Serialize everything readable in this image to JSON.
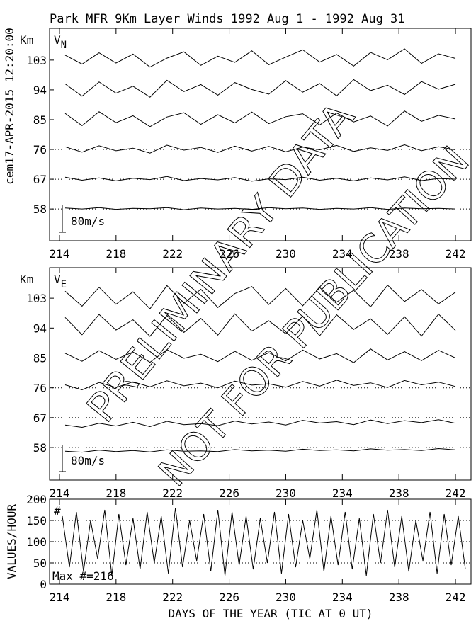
{
  "title": "Park MFR 9Km Layer Winds 1992 Aug  1 - 1992 Aug 31",
  "timestamp": "cem17-APR-2015 12:20:00",
  "xlabel": "DAYS OF THE YEAR (TIC AT 0 UT)",
  "watermark": [
    "PRELIMINARY DATA",
    "NOT FOR PUBLICATION"
  ],
  "chart_data": [
    {
      "type": "line",
      "ylabel": "Km",
      "label": "V",
      "label_sub": "N",
      "scale_label": "80m/s",
      "xlim": [
        213.3,
        243.1
      ],
      "xticks": [
        214,
        218,
        222,
        226,
        230,
        234,
        238,
        242
      ],
      "ylim": [
        48.4,
        112.6
      ],
      "yticks": [
        58,
        67,
        76,
        85,
        94,
        103
      ],
      "grid": true,
      "x": [
        214.4,
        215.6,
        216.8,
        218.0,
        219.2,
        220.4,
        221.6,
        222.8,
        224.0,
        225.2,
        226.4,
        227.6,
        228.8,
        230.0,
        231.2,
        232.4,
        233.6,
        234.8,
        236.0,
        237.2,
        238.4,
        239.6,
        240.8,
        242.0
      ],
      "series": [
        {
          "name": "103",
          "color": "#000000",
          "values": [
            104.5,
            101.8,
            105.2,
            102.1,
            104.8,
            100.9,
            103.6,
            105.5,
            101.4,
            104.2,
            102.3,
            105.8,
            101.6,
            103.9,
            106.1,
            102.4,
            104.7,
            101.2,
            105.3,
            103.1,
            106.4,
            102.0,
            104.9,
            103.5
          ]
        },
        {
          "name": "94",
          "color": "#000000",
          "values": [
            95.8,
            92.1,
            96.4,
            93.0,
            95.1,
            91.8,
            96.9,
            93.5,
            95.6,
            92.4,
            96.2,
            94.1,
            92.7,
            96.8,
            93.3,
            95.9,
            92.2,
            97.1,
            93.8,
            95.4,
            92.6,
            96.5,
            94.2,
            95.7
          ]
        },
        {
          "name": "85",
          "color": "#000000",
          "values": [
            86.9,
            83.2,
            87.4,
            84.1,
            86.2,
            82.9,
            85.8,
            87.1,
            83.6,
            86.5,
            84.0,
            87.3,
            83.8,
            85.9,
            86.8,
            83.4,
            87.0,
            84.3,
            86.1,
            83.1,
            87.6,
            84.5,
            86.3,
            85.2
          ]
        },
        {
          "name": "76",
          "color": "#000000",
          "values": [
            76.8,
            75.2,
            77.1,
            75.6,
            76.4,
            74.9,
            77.3,
            75.8,
            76.6,
            75.1,
            77.0,
            75.5,
            76.9,
            75.3,
            76.7,
            75.9,
            77.2,
            75.4,
            76.5,
            75.7,
            77.4,
            75.6,
            76.8,
            75.9
          ]
        },
        {
          "name": "67",
          "color": "#000000",
          "values": [
            67.6,
            66.7,
            67.4,
            66.5,
            67.3,
            66.9,
            67.8,
            66.6,
            67.2,
            66.8,
            67.5,
            66.4,
            67.1,
            66.9,
            67.6,
            66.7,
            67.3,
            66.5,
            67.4,
            66.8,
            67.7,
            66.6,
            67.2,
            67.0
          ]
        },
        {
          "name": "58",
          "color": "#000000",
          "values": [
            58.3,
            58.0,
            58.4,
            57.9,
            58.2,
            58.1,
            58.4,
            57.8,
            58.3,
            58.0,
            58.2,
            57.9,
            58.4,
            58.1,
            58.3,
            57.9,
            58.2,
            58.0,
            58.4,
            57.9,
            58.3,
            58.1,
            58.2,
            58.0
          ]
        }
      ]
    },
    {
      "type": "line",
      "ylabel": "Km",
      "label": "V",
      "label_sub": "E",
      "scale_label": "80m/s",
      "xlim": [
        213.3,
        243.1
      ],
      "xticks": [
        214,
        218,
        222,
        226,
        230,
        234,
        238,
        242
      ],
      "ylim": [
        48.2,
        112.2
      ],
      "yticks": [
        58,
        67,
        76,
        85,
        94,
        103
      ],
      "grid": true,
      "x": [
        214.4,
        215.6,
        216.8,
        218.0,
        219.2,
        220.4,
        221.6,
        222.8,
        224.0,
        225.2,
        226.4,
        227.6,
        228.8,
        230.0,
        231.2,
        232.4,
        233.6,
        234.8,
        236.0,
        237.2,
        238.4,
        239.6,
        240.8,
        242.0
      ],
      "series": [
        {
          "name": "103",
          "color": "#000000",
          "values": [
            105.1,
            100.6,
            106.3,
            101.2,
            104.9,
            99.8,
            106.8,
            101.5,
            105.7,
            100.2,
            104.4,
            106.5,
            101.1,
            105.9,
            100.7,
            106.2,
            101.8,
            105.4,
            100.4,
            106.9,
            102.0,
            105.6,
            101.3,
            104.8
          ]
        },
        {
          "name": "94",
          "color": "#000000",
          "values": [
            97.2,
            92.0,
            98.1,
            93.4,
            96.5,
            91.5,
            97.8,
            92.7,
            96.9,
            91.9,
            98.3,
            93.1,
            96.2,
            92.3,
            97.6,
            91.7,
            98.0,
            93.6,
            96.8,
            92.1,
            97.4,
            91.6,
            98.2,
            93.3
          ]
        },
        {
          "name": "85",
          "color": "#000000",
          "values": [
            86.4,
            84.0,
            87.2,
            84.6,
            86.8,
            83.7,
            87.5,
            84.9,
            86.1,
            83.9,
            87.0,
            84.3,
            86.6,
            84.1,
            87.4,
            84.7,
            86.3,
            83.6,
            87.7,
            84.4,
            86.9,
            84.2,
            87.3,
            85.0
          ]
        },
        {
          "name": "76",
          "color": "#000000",
          "values": [
            76.9,
            75.4,
            77.6,
            76.1,
            77.8,
            76.3,
            78.1,
            76.6,
            77.4,
            76.0,
            78.0,
            76.8,
            77.2,
            76.2,
            77.9,
            76.5,
            78.3,
            76.7,
            77.5,
            76.1,
            78.2,
            76.9,
            77.7,
            76.4
          ]
        },
        {
          "name": "67",
          "color": "#000000",
          "values": [
            64.8,
            64.1,
            65.3,
            64.5,
            65.6,
            64.3,
            65.9,
            64.9,
            65.2,
            64.6,
            66.0,
            65.1,
            65.7,
            64.8,
            66.2,
            65.4,
            65.8,
            64.9,
            66.3,
            65.2,
            66.1,
            65.5,
            66.4,
            65.3
          ]
        },
        {
          "name": "58",
          "color": "#000000",
          "values": [
            56.9,
            56.6,
            57.2,
            56.8,
            57.1,
            56.7,
            57.3,
            56.9,
            57.0,
            56.8,
            57.4,
            57.0,
            57.2,
            56.9,
            57.5,
            57.1,
            57.3,
            57.0,
            57.6,
            57.2,
            57.4,
            57.1,
            57.7,
            57.3
          ]
        }
      ]
    },
    {
      "type": "line",
      "ylabel": "VALUES/HOUR",
      "annotation": "#",
      "max_label": "Max #=216",
      "xlim": [
        213.3,
        243.1
      ],
      "xticks": [
        214,
        218,
        222,
        226,
        230,
        234,
        238,
        242
      ],
      "ylim": [
        0,
        200
      ],
      "yticks": [
        0,
        50,
        100,
        150,
        200
      ],
      "grid": true,
      "x": [
        214.2,
        214.7,
        215.2,
        215.7,
        216.2,
        216.7,
        217.2,
        217.7,
        218.2,
        218.7,
        219.2,
        219.7,
        220.2,
        220.7,
        221.2,
        221.7,
        222.2,
        222.7,
        223.2,
        223.7,
        224.2,
        224.7,
        225.2,
        225.7,
        226.2,
        226.7,
        227.2,
        227.7,
        228.2,
        228.7,
        229.2,
        229.7,
        230.2,
        230.7,
        231.2,
        231.7,
        232.2,
        232.7,
        233.2,
        233.7,
        234.2,
        234.7,
        235.2,
        235.7,
        236.2,
        236.7,
        237.2,
        237.7,
        238.2,
        238.7,
        239.2,
        239.7,
        240.2,
        240.7,
        241.2,
        241.7,
        242.2,
        242.7
      ],
      "series": [
        {
          "name": "#",
          "color": "#000000",
          "values": [
            160,
            40,
            170,
            30,
            150,
            60,
            175,
            20,
            165,
            45,
            155,
            35,
            170,
            50,
            160,
            25,
            180,
            40,
            150,
            55,
            165,
            30,
            175,
            20,
            170,
            45,
            160,
            35,
            155,
            50,
            170,
            25,
            165,
            40,
            150,
            60,
            175,
            30,
            160,
            45,
            170,
            35,
            155,
            20,
            165,
            50,
            175,
            40,
            160,
            30,
            150,
            55,
            170,
            25,
            165,
            45,
            160,
            35
          ]
        }
      ]
    }
  ]
}
